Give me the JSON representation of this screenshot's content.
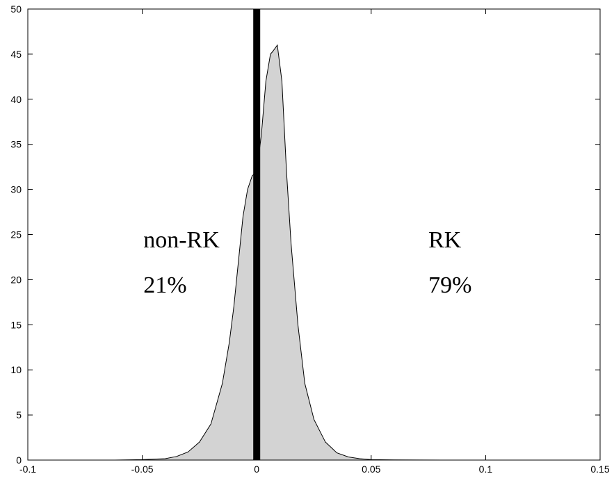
{
  "chart_data": {
    "type": "area",
    "title": "",
    "xlabel": "",
    "ylabel": "",
    "xlim": [
      -0.1,
      0.15
    ],
    "ylim": [
      0,
      50
    ],
    "xticks": [
      "-0.1",
      "-0.05",
      "0",
      "0.05",
      "0.1",
      "0.15"
    ],
    "yticks": [
      "0",
      "5",
      "10",
      "15",
      "20",
      "25",
      "30",
      "35",
      "40",
      "45",
      "50"
    ],
    "grid": false,
    "series": [
      {
        "fill_color": "#d3d3d3",
        "line_color": "#000000",
        "x": [
          -0.062,
          -0.05,
          -0.04,
          -0.035,
          -0.03,
          -0.025,
          -0.02,
          -0.015,
          -0.012,
          -0.01,
          -0.008,
          -0.006,
          -0.004,
          -0.002,
          0.0,
          0.002,
          0.004,
          0.006,
          0.007,
          0.009,
          0.011,
          0.013,
          0.015,
          0.018,
          0.021,
          0.025,
          0.03,
          0.035,
          0.04,
          0.045,
          0.05,
          0.06,
          0.07,
          0.09,
          0.14
        ],
        "y": [
          0.0,
          0.05,
          0.15,
          0.4,
          0.9,
          2.0,
          4.0,
          8.5,
          13.0,
          17.0,
          22.0,
          27.0,
          30.0,
          31.5,
          32.0,
          36.0,
          42.0,
          45.0,
          45.3,
          46.0,
          42.0,
          32.0,
          24.0,
          15.0,
          8.5,
          4.5,
          2.0,
          0.8,
          0.35,
          0.15,
          0.05,
          0.02,
          0.01,
          0.0,
          0.0
        ]
      }
    ],
    "vertical_line": {
      "x": 0.0,
      "color": "#000000"
    },
    "annotations": [
      {
        "text": "non-RK",
        "x": -0.0495,
        "y": 24.5
      },
      {
        "text": "21%",
        "x": -0.0495,
        "y": 19.5
      },
      {
        "text": "RK",
        "x": 0.075,
        "y": 24.5
      },
      {
        "text": "79%",
        "x": 0.075,
        "y": 19.5
      }
    ]
  }
}
